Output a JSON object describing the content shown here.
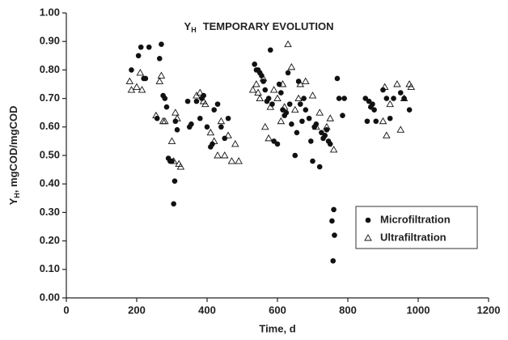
{
  "chart_data": {
    "type": "scatter",
    "title": [
      "Y",
      "H",
      "TEMPORARY EVOLUTION"
    ],
    "x_label": "Time, d",
    "y_label": [
      "Y",
      "H",
      ", mgCOD/mgCOD"
    ],
    "xlim": [
      0,
      1200
    ],
    "xticks": [
      0,
      200,
      400,
      600,
      800,
      1000,
      1200
    ],
    "ylim": [
      0,
      1
    ],
    "yticks": [
      {
        "value": 0,
        "label": "0.00"
      },
      {
        "value": 0.1,
        "label": "0.10"
      },
      {
        "value": 0.2,
        "label": "0.20"
      },
      {
        "value": 0.3,
        "label": "0.30"
      },
      {
        "value": 0.4,
        "label": "0.40"
      },
      {
        "value": 0.5,
        "label": "0.50"
      },
      {
        "value": 0.6,
        "label": "0.60"
      },
      {
        "value": 0.7,
        "label": "0.70"
      },
      {
        "value": 0.8,
        "label": "0.80"
      },
      {
        "value": 0.9,
        "label": "0.90"
      },
      {
        "value": 1,
        "label": "1.00"
      }
    ],
    "legend": "lower right",
    "series": [
      {
        "name": "Microfiltration",
        "color": "#111111",
        "marker": "circle",
        "x": [
          185,
          205,
          212,
          220,
          225,
          235,
          258,
          265,
          270,
          275,
          280,
          285,
          290,
          295,
          300,
          305,
          308,
          315,
          310,
          345,
          350,
          355,
          370,
          380,
          385,
          390,
          400,
          410,
          415,
          420,
          430,
          440,
          450,
          460,
          535,
          540,
          545,
          550,
          555,
          560,
          565,
          570,
          575,
          580,
          585,
          590,
          600,
          605,
          610,
          615,
          620,
          625,
          630,
          635,
          640,
          650,
          655,
          660,
          665,
          670,
          675,
          680,
          690,
          695,
          700,
          705,
          710,
          720,
          725,
          730,
          735,
          740,
          745,
          750,
          755,
          760,
          762,
          758,
          770,
          775,
          785,
          790,
          850,
          855,
          860,
          865,
          870,
          875,
          880,
          900,
          910,
          920,
          930,
          950,
          960,
          975
        ],
        "values": [
          0.8,
          0.85,
          0.88,
          0.77,
          0.77,
          0.88,
          0.63,
          0.84,
          0.89,
          0.71,
          0.7,
          0.67,
          0.49,
          0.48,
          0.48,
          0.33,
          0.41,
          0.59,
          0.62,
          0.69,
          0.6,
          0.61,
          0.69,
          0.63,
          0.7,
          0.71,
          0.6,
          0.53,
          0.54,
          0.66,
          0.68,
          0.6,
          0.56,
          0.63,
          0.82,
          0.8,
          0.8,
          0.79,
          0.78,
          0.76,
          0.73,
          0.69,
          0.7,
          0.87,
          0.68,
          0.55,
          0.54,
          0.75,
          0.72,
          0.66,
          0.64,
          0.65,
          0.79,
          0.68,
          0.61,
          0.5,
          0.58,
          0.76,
          0.68,
          0.62,
          0.7,
          0.66,
          0.63,
          0.55,
          0.48,
          0.6,
          0.61,
          0.46,
          0.58,
          0.56,
          0.57,
          0.59,
          0.55,
          0.54,
          0.27,
          0.31,
          0.22,
          0.13,
          0.77,
          0.7,
          0.64,
          0.7,
          0.7,
          0.62,
          0.69,
          0.67,
          0.68,
          0.66,
          0.62,
          0.73,
          0.7,
          0.63,
          0.7,
          0.72,
          0.7,
          0.66
        ]
      },
      {
        "name": "Ultrafiltration",
        "color": "#111111",
        "marker": "triangle",
        "x": [
          180,
          185,
          200,
          210,
          215,
          255,
          265,
          270,
          275,
          280,
          300,
          305,
          310,
          315,
          320,
          325,
          370,
          380,
          390,
          395,
          410,
          420,
          430,
          440,
          450,
          460,
          470,
          480,
          490,
          530,
          540,
          545,
          550,
          560,
          565,
          575,
          580,
          590,
          600,
          610,
          615,
          620,
          630,
          640,
          650,
          660,
          665,
          680,
          700,
          710,
          720,
          740,
          750,
          760,
          900,
          905,
          910,
          920,
          940,
          950,
          960,
          975,
          980
        ],
        "values": [
          0.76,
          0.73,
          0.74,
          0.79,
          0.73,
          0.64,
          0.76,
          0.78,
          0.62,
          0.62,
          0.55,
          0.48,
          0.65,
          0.63,
          0.47,
          0.46,
          0.71,
          0.72,
          0.69,
          0.68,
          0.58,
          0.55,
          0.5,
          0.62,
          0.5,
          0.57,
          0.48,
          0.54,
          0.48,
          0.73,
          0.75,
          0.72,
          0.7,
          0.77,
          0.6,
          0.56,
          0.67,
          0.73,
          0.7,
          0.62,
          0.75,
          0.67,
          0.89,
          0.81,
          0.66,
          0.7,
          0.75,
          0.76,
          0.71,
          0.6,
          0.65,
          0.6,
          0.63,
          0.52,
          0.62,
          0.74,
          0.57,
          0.68,
          0.75,
          0.59,
          0.7,
          0.75,
          0.74
        ]
      }
    ]
  }
}
